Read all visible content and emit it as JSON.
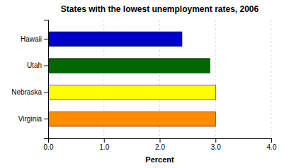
{
  "chart_data": {
    "type": "bar",
    "orientation": "horizontal",
    "title": "States with the lowest unemployment rates, 2006",
    "xlabel": "Percent",
    "categories": [
      "Hawaii",
      "Utah",
      "Nebraska",
      "Virginia"
    ],
    "values": [
      2.4,
      2.9,
      3.0,
      3.0
    ],
    "colors": [
      "#0000CC",
      "#006600",
      "#FFFF00",
      "#FF8C00"
    ],
    "xlim": [
      0,
      4.0
    ],
    "xticks": [
      {
        "value": 0.0,
        "label": "0.0"
      },
      {
        "value": 1.0,
        "label": "1.0"
      },
      {
        "value": 2.0,
        "label": "2.0"
      },
      {
        "value": 3.0,
        "label": "3.0"
      },
      {
        "value": 4.0,
        "label": "4.0"
      }
    ],
    "grid": true
  }
}
